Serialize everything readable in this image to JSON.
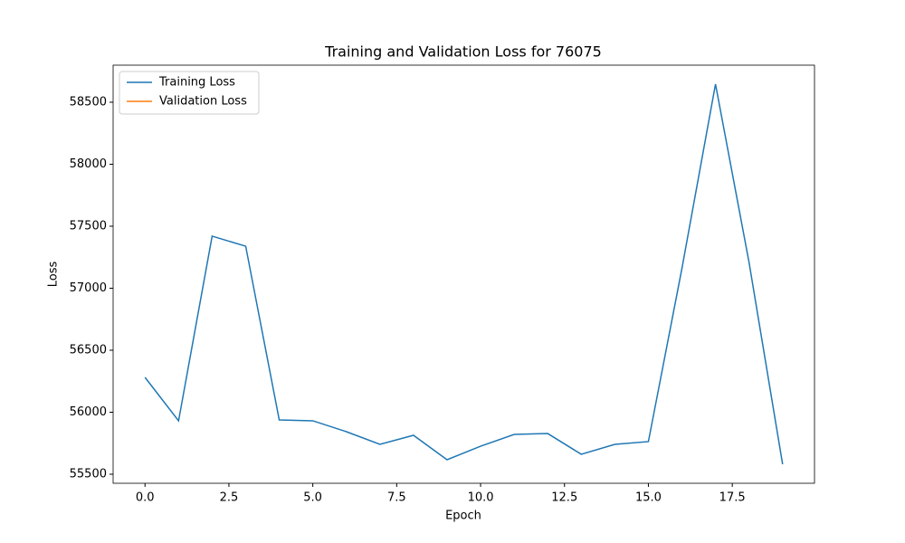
{
  "chart_data": {
    "type": "line",
    "title": "Training and Validation Loss for 76075",
    "x_label": "Epoch",
    "y_label": "Loss",
    "x": [
      0,
      1,
      2,
      3,
      4,
      5,
      6,
      7,
      8,
      9,
      10,
      11,
      12,
      13,
      14,
      15,
      16,
      17,
      18,
      19
    ],
    "series": [
      {
        "name": "Training Loss",
        "color": "#1f77b4",
        "values": [
          56281,
          55931,
          57420,
          57339,
          55938,
          55931,
          55843,
          55741,
          55814,
          55617,
          55726,
          55821,
          55828,
          55661,
          55741,
          55763,
          57160,
          58646,
          57208,
          55580
        ]
      },
      {
        "name": "Validation Loss",
        "color": "#ff7f0e",
        "values": [
          null,
          null,
          null,
          null,
          null,
          null,
          null,
          null,
          null,
          null,
          null,
          null,
          null,
          null,
          null,
          null,
          null,
          null,
          null,
          null
        ]
      }
    ],
    "xlim": [
      -0.95,
      19.95
    ],
    "xticks": [
      {
        "value": 0,
        "label": "0.0"
      },
      {
        "value": 2.5,
        "label": "2.5"
      },
      {
        "value": 5,
        "label": "5.0"
      },
      {
        "value": 7.5,
        "label": "7.5"
      },
      {
        "value": 10,
        "label": "10.0"
      },
      {
        "value": 12.5,
        "label": "12.5"
      },
      {
        "value": 15,
        "label": "15.0"
      },
      {
        "value": 17.5,
        "label": "17.5"
      }
    ],
    "ylim": [
      55427,
      58799
    ],
    "yticks": [
      55500,
      56000,
      56500,
      57000,
      57500,
      58000,
      58500
    ],
    "legend": "upper left"
  }
}
